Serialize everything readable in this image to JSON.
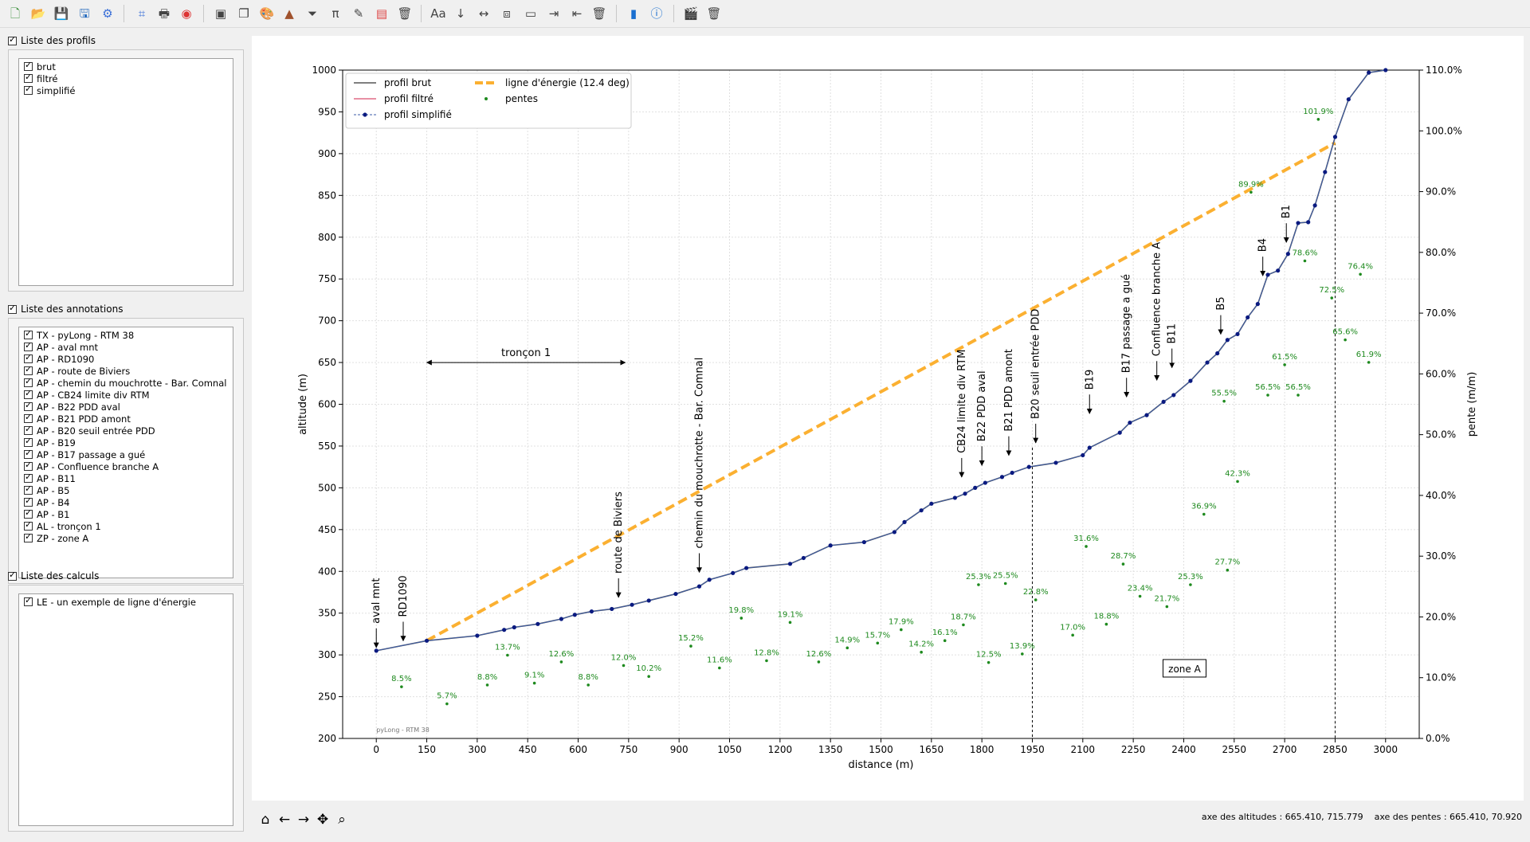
{
  "toolbar": {
    "icons": [
      "new-file-icon",
      "open-folder-icon",
      "save-icon",
      "save-as-icon",
      "settings-gear-icon",
      "crop-icon",
      "print-icon",
      "camera-icon",
      "square-button-icon",
      "copy-icon",
      "palette-icon",
      "wizard-hat-icon",
      "funnel-icon",
      "pi-icon",
      "pencil-icon",
      "text-file-icon",
      "trash-icon",
      "font-icon",
      "down-arrow-icon",
      "horizontal-arrow-icon",
      "text-box-icon",
      "rectangle-icon",
      "export-icon",
      "import-icon",
      "trash-icon-2",
      "book-icon",
      "info-icon",
      "clapperboard-icon",
      "trash-icon-3"
    ]
  },
  "sidebar": {
    "profiles": {
      "title": "Liste des profils",
      "items": [
        "brut",
        "filtré",
        "simplifié"
      ]
    },
    "annotations": {
      "title": "Liste des annotations",
      "items": [
        "TX - pyLong - RTM 38",
        "AP - aval mnt",
        "AP - RD1090",
        "AP - route de Biviers",
        "AP - chemin du mouchrotte - Bar. Comnal",
        "AP - CB24 limite div RTM",
        "AP - B22 PDD aval",
        "AP - B21 PDD amont",
        "AP - B20 seuil entrée PDD",
        "AP - B19",
        "AP - B17 passage a gué",
        "AP - Confluence branche A",
        "AP - B11",
        "AP - B5",
        "AP - B4",
        "AP - B1",
        "AL - tronçon 1",
        "ZP - zone A"
      ]
    },
    "calcs": {
      "title": "Liste des calculs",
      "items": [
        "LE - un exemple de ligne d'énergie"
      ]
    }
  },
  "navbar": {
    "icons": [
      "home-icon",
      "back-arrow-icon",
      "forward-arrow-icon",
      "pan-icon",
      "zoom-icon"
    ],
    "coords": "axe des altitudes : 665.410, 715.779    axe des pentes : 665.410, 70.920"
  },
  "chart_data": {
    "type": "line",
    "xlabel": "distance (m)",
    "ylabel": "altitude (m)",
    "y2label": "pente (m/m)",
    "xlim": [
      -100,
      3100
    ],
    "ylim": [
      200,
      1000
    ],
    "y2lim": [
      0,
      110
    ],
    "xticks": [
      0,
      150,
      300,
      450,
      600,
      750,
      900,
      1050,
      1200,
      1350,
      1500,
      1650,
      1800,
      1950,
      2100,
      2250,
      2400,
      2550,
      2700,
      2850,
      3000
    ],
    "yticks": [
      200,
      250,
      300,
      350,
      400,
      450,
      500,
      550,
      600,
      650,
      700,
      750,
      800,
      850,
      900,
      950,
      1000
    ],
    "y2ticks": [
      0,
      10,
      20,
      30,
      40,
      50,
      60,
      70,
      80,
      90,
      100,
      110
    ],
    "y2ticklabels": [
      "0.0%",
      "10.0%",
      "20.0%",
      "30.0%",
      "40.0%",
      "50.0%",
      "60.0%",
      "70.0%",
      "80.0%",
      "90.0%",
      "100.0%",
      "110.0%"
    ],
    "grid": true,
    "legend_position": "top-left",
    "legend": [
      "profil brut",
      "profil filtré",
      "profil simplifié",
      "ligne d'énergie (12.4 deg)",
      "pentes"
    ],
    "series": [
      {
        "name": "profil simplifié",
        "x": [
          0,
          150,
          300,
          380,
          410,
          480,
          550,
          590,
          640,
          700,
          760,
          810,
          890,
          960,
          990,
          1060,
          1100,
          1230,
          1270,
          1350,
          1450,
          1540,
          1570,
          1620,
          1650,
          1720,
          1750,
          1780,
          1810,
          1860,
          1890,
          1940,
          2020,
          2100,
          2120,
          2210,
          2240,
          2290,
          2340,
          2370,
          2420,
          2470,
          2500,
          2530,
          2560,
          2590,
          2620,
          2650,
          2680,
          2710,
          2740,
          2770,
          2790,
          2820,
          2850,
          2890,
          2950,
          3000
        ],
        "y": [
          305,
          317,
          323,
          330,
          333,
          337,
          343,
          348,
          352,
          355,
          360,
          365,
          373,
          382,
          390,
          398,
          404,
          409,
          416,
          431,
          435,
          447,
          459,
          473,
          481,
          488,
          493,
          500,
          506,
          513,
          518,
          525,
          530,
          539,
          548,
          566,
          578,
          587,
          603,
          611,
          628,
          650,
          661,
          677,
          684,
          704,
          720,
          755,
          760,
          780,
          817,
          818,
          838,
          878,
          920,
          965,
          997,
          1000
        ]
      },
      {
        "name": "ligne d'énergie (12.4 deg)",
        "x": [
          150,
          2850
        ],
        "y": [
          317,
          913
        ]
      }
    ],
    "slopes": [
      {
        "x": 75,
        "y": 8.5,
        "label": "8.5%"
      },
      {
        "x": 210,
        "y": 5.7,
        "label": "5.7%"
      },
      {
        "x": 330,
        "y": 8.8,
        "label": "8.8%"
      },
      {
        "x": 390,
        "y": 13.7,
        "label": "13.7%"
      },
      {
        "x": 470,
        "y": 9.1,
        "label": "9.1%"
      },
      {
        "x": 550,
        "y": 12.6,
        "label": "12.6%"
      },
      {
        "x": 630,
        "y": 8.8,
        "label": "8.8%"
      },
      {
        "x": 735,
        "y": 12.0,
        "label": "12.0%"
      },
      {
        "x": 810,
        "y": 10.2,
        "label": "10.2%"
      },
      {
        "x": 935,
        "y": 15.2,
        "label": "15.2%"
      },
      {
        "x": 1020,
        "y": 11.6,
        "label": "11.6%"
      },
      {
        "x": 1085,
        "y": 19.8,
        "label": "19.8%"
      },
      {
        "x": 1160,
        "y": 12.8,
        "label": "12.8%"
      },
      {
        "x": 1230,
        "y": 19.1,
        "label": "19.1%"
      },
      {
        "x": 1315,
        "y": 12.6,
        "label": "12.6%"
      },
      {
        "x": 1400,
        "y": 14.9,
        "label": "14.9%"
      },
      {
        "x": 1490,
        "y": 15.7,
        "label": "15.7%"
      },
      {
        "x": 1560,
        "y": 17.9,
        "label": "17.9%"
      },
      {
        "x": 1620,
        "y": 14.2,
        "label": "14.2%"
      },
      {
        "x": 1690,
        "y": 16.1,
        "label": "16.1%"
      },
      {
        "x": 1745,
        "y": 18.7,
        "label": "18.7%"
      },
      {
        "x": 1790,
        "y": 25.3,
        "label": "25.3%"
      },
      {
        "x": 1820,
        "y": 12.5,
        "label": "12.5%"
      },
      {
        "x": 1870,
        "y": 25.5,
        "label": "25.5%"
      },
      {
        "x": 1920,
        "y": 13.9,
        "label": "13.9%"
      },
      {
        "x": 1960,
        "y": 22.8,
        "label": "22.8%"
      },
      {
        "x": 2070,
        "y": 17.0,
        "label": "17.0%"
      },
      {
        "x": 2110,
        "y": 31.6,
        "label": "31.6%"
      },
      {
        "x": 2170,
        "y": 18.8,
        "label": "18.8%"
      },
      {
        "x": 2220,
        "y": 28.7,
        "label": "28.7%"
      },
      {
        "x": 2270,
        "y": 23.4,
        "label": "23.4%"
      },
      {
        "x": 2350,
        "y": 21.7,
        "label": "21.7%"
      },
      {
        "x": 2420,
        "y": 25.3,
        "label": "25.3%"
      },
      {
        "x": 2460,
        "y": 36.9,
        "label": "36.9%"
      },
      {
        "x": 2520,
        "y": 55.5,
        "label": "55.5%"
      },
      {
        "x": 2530,
        "y": 27.7,
        "label": "27.7%"
      },
      {
        "x": 2560,
        "y": 42.3,
        "label": "42.3%"
      },
      {
        "x": 2600,
        "y": 89.9,
        "label": "89.9%"
      },
      {
        "x": 2650,
        "y": 56.5,
        "label": "56.5%"
      },
      {
        "x": 2700,
        "y": 61.5,
        "label": "61.5%"
      },
      {
        "x": 2740,
        "y": 56.5,
        "label": "56.5%"
      },
      {
        "x": 2760,
        "y": 78.6,
        "label": "78.6%"
      },
      {
        "x": 2800,
        "y": 101.9,
        "label": "101.9%"
      },
      {
        "x": 2840,
        "y": 72.5,
        "label": "72.5%"
      },
      {
        "x": 2880,
        "y": 65.6,
        "label": "65.6%"
      },
      {
        "x": 2925,
        "y": 76.4,
        "label": "76.4%"
      },
      {
        "x": 2950,
        "y": 61.9,
        "label": "61.9%"
      }
    ],
    "annotations": [
      {
        "x": 0,
        "y": 305,
        "label": "aval mnt"
      },
      {
        "x": 80,
        "y": 313,
        "label": "RD1090"
      },
      {
        "x": 720,
        "y": 365,
        "label": "route de Biviers"
      },
      {
        "x": 960,
        "y": 395,
        "label": "chemin du mouchrotte - Bar. Comnal"
      },
      {
        "x": 1740,
        "y": 509,
        "label": "CB24 limite div RTM"
      },
      {
        "x": 1800,
        "y": 523,
        "label": "B22 PDD aval"
      },
      {
        "x": 1880,
        "y": 535,
        "label": "B21 PDD amont"
      },
      {
        "x": 1960,
        "y": 550,
        "label": "B20 seuil entrée PDD"
      },
      {
        "x": 2120,
        "y": 585,
        "label": "B19"
      },
      {
        "x": 2230,
        "y": 605,
        "label": "B17 passage a gué"
      },
      {
        "x": 2320,
        "y": 625,
        "label": "Confluence branche A"
      },
      {
        "x": 2365,
        "y": 640,
        "label": "B11"
      },
      {
        "x": 2510,
        "y": 680,
        "label": "B5"
      },
      {
        "x": 2635,
        "y": 750,
        "label": "B4"
      },
      {
        "x": 2705,
        "y": 790,
        "label": "B1"
      }
    ],
    "section": {
      "x1": 150,
      "x2": 740,
      "y": 650,
      "label": "tronçon 1"
    },
    "zone": {
      "x1": 1950,
      "x2": 2850,
      "label": "zone A",
      "label_y": 283
    },
    "watermark": "pyLong - RTM 38"
  }
}
